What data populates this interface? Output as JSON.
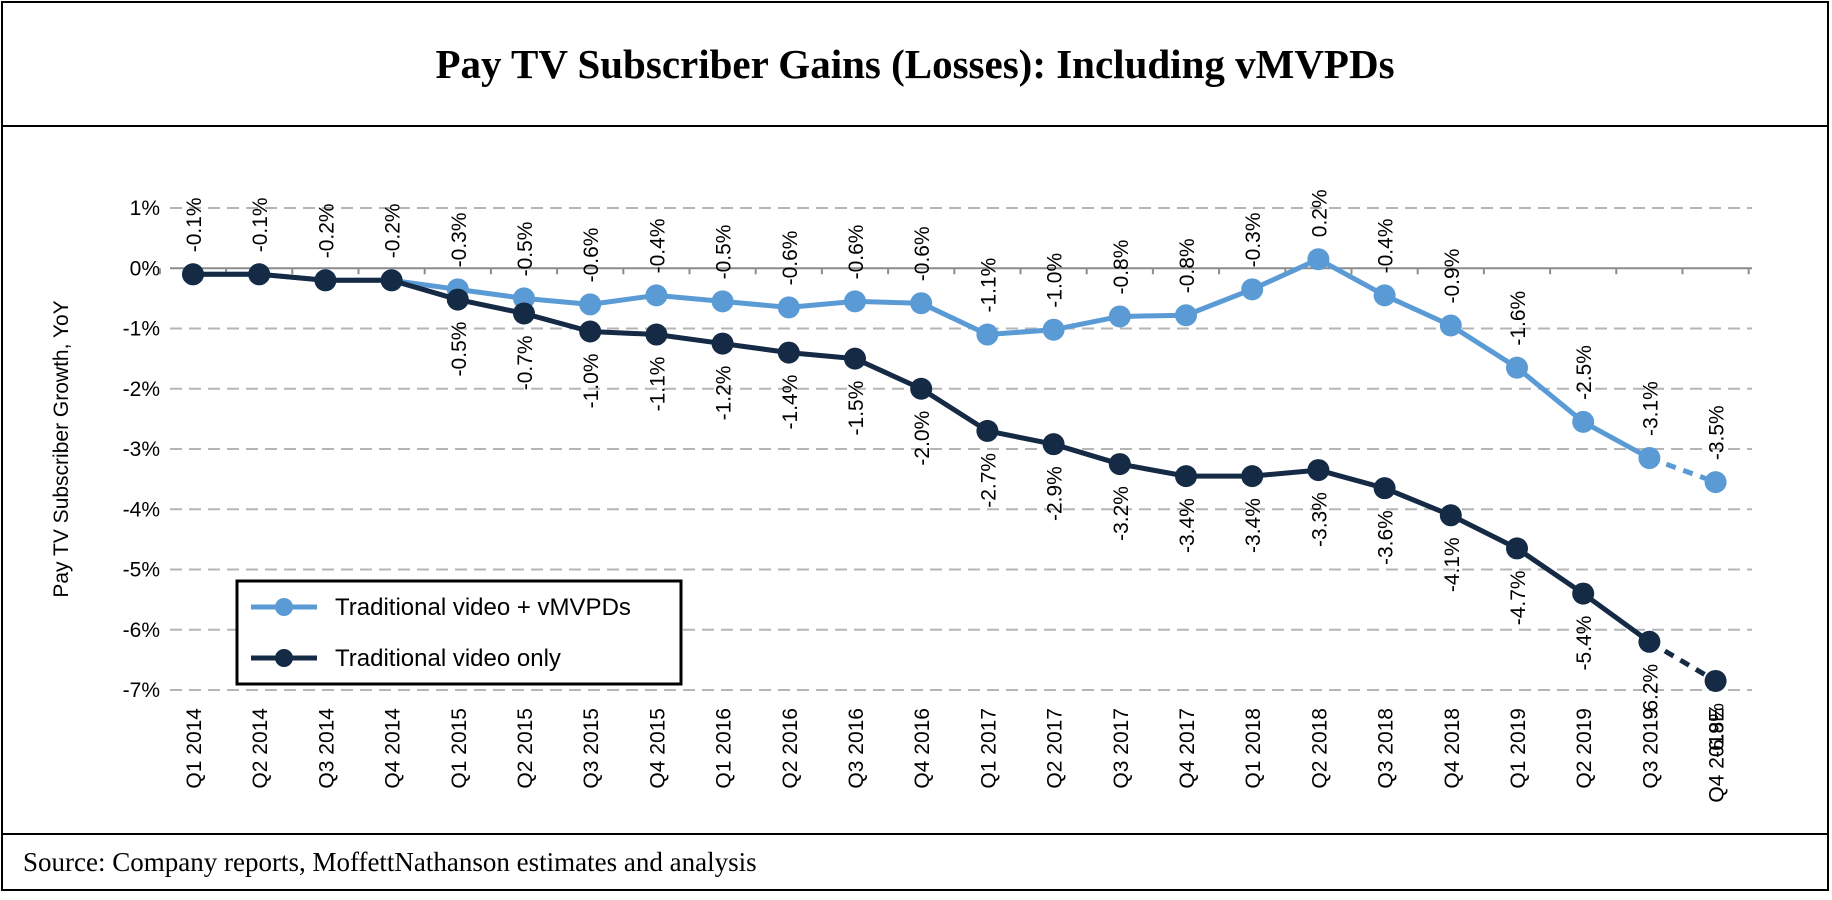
{
  "title": "Pay TV Subscriber Gains (Losses): Including vMVPDs",
  "source": "Source: Company reports, MoffettNathanson estimates and analysis",
  "chart_data": {
    "type": "line",
    "ylabel": "Pay TV Subscriber Growth, YoY",
    "xlabel": "",
    "ylim": [
      -7,
      1
    ],
    "yticks": [
      1,
      0,
      -1,
      -2,
      -3,
      -4,
      -5,
      -6,
      -7
    ],
    "ytick_labels": [
      "1%",
      "0%",
      "-1%",
      "-2%",
      "-3%",
      "-4%",
      "-5%",
      "-6%",
      "-7%"
    ],
    "grid": "horizontal dashed",
    "legend_position": "bottom-left",
    "categories": [
      "Q1 2014",
      "Q2 2014",
      "Q3 2014",
      "Q4 2014",
      "Q1 2015",
      "Q2 2015",
      "Q3 2015",
      "Q4 2015",
      "Q1 2016",
      "Q2 2016",
      "Q3 2016",
      "Q4 2016",
      "Q1 2017",
      "Q2 2017",
      "Q3 2017",
      "Q4 2017",
      "Q1 2018",
      "Q2 2018",
      "Q3 2018",
      "Q4 2018",
      "Q1 2019",
      "Q2 2019",
      "Q3 2019",
      "Q4 2019E"
    ],
    "estimate_from_index": 23,
    "series": [
      {
        "name": "Traditional video + vMVPDs",
        "color": "#5b9bd5",
        "values": [
          -0.1,
          -0.1,
          -0.2,
          -0.2,
          -0.35,
          -0.5,
          -0.6,
          -0.45,
          -0.55,
          -0.65,
          -0.55,
          -0.58,
          -1.1,
          -1.02,
          -0.8,
          -0.78,
          -0.35,
          0.15,
          -0.45,
          -0.95,
          -1.65,
          -2.55,
          -3.15,
          -3.55
        ],
        "labels": [
          "-0.1%",
          "-0.1%",
          "-0.2%",
          "-0.2%",
          "-0.3%",
          "-0.5%",
          "-0.6%",
          "-0.4%",
          "-0.5%",
          "-0.6%",
          "-0.6%",
          "-0.6%",
          "-1.1%",
          "-1.0%",
          "-0.8%",
          "-0.8%",
          "-0.3%",
          "0.2%",
          "-0.4%",
          "-0.9%",
          "-1.6%",
          "-2.5%",
          "-3.1%",
          "-3.5%"
        ]
      },
      {
        "name": "Traditional video only",
        "color": "#152a44",
        "values": [
          -0.1,
          -0.1,
          -0.2,
          -0.2,
          -0.52,
          -0.75,
          -1.05,
          -1.1,
          -1.25,
          -1.4,
          -1.5,
          -2.0,
          -2.7,
          -2.92,
          -3.25,
          -3.45,
          -3.45,
          -3.35,
          -3.65,
          -4.1,
          -4.65,
          -5.4,
          -6.2,
          -6.85
        ],
        "labels": [
          "",
          "",
          "",
          "",
          "-0.5%",
          "-0.7%",
          "-1.0%",
          "-1.1%",
          "-1.2%",
          "-1.4%",
          "-1.5%",
          "-2.0%",
          "-2.7%",
          "-2.9%",
          "-3.2%",
          "-3.4%",
          "-3.4%",
          "-3.3%",
          "-3.6%",
          "-4.1%",
          "-4.7%",
          "-5.4%",
          "-6.2%",
          "-6.8%"
        ]
      }
    ]
  }
}
